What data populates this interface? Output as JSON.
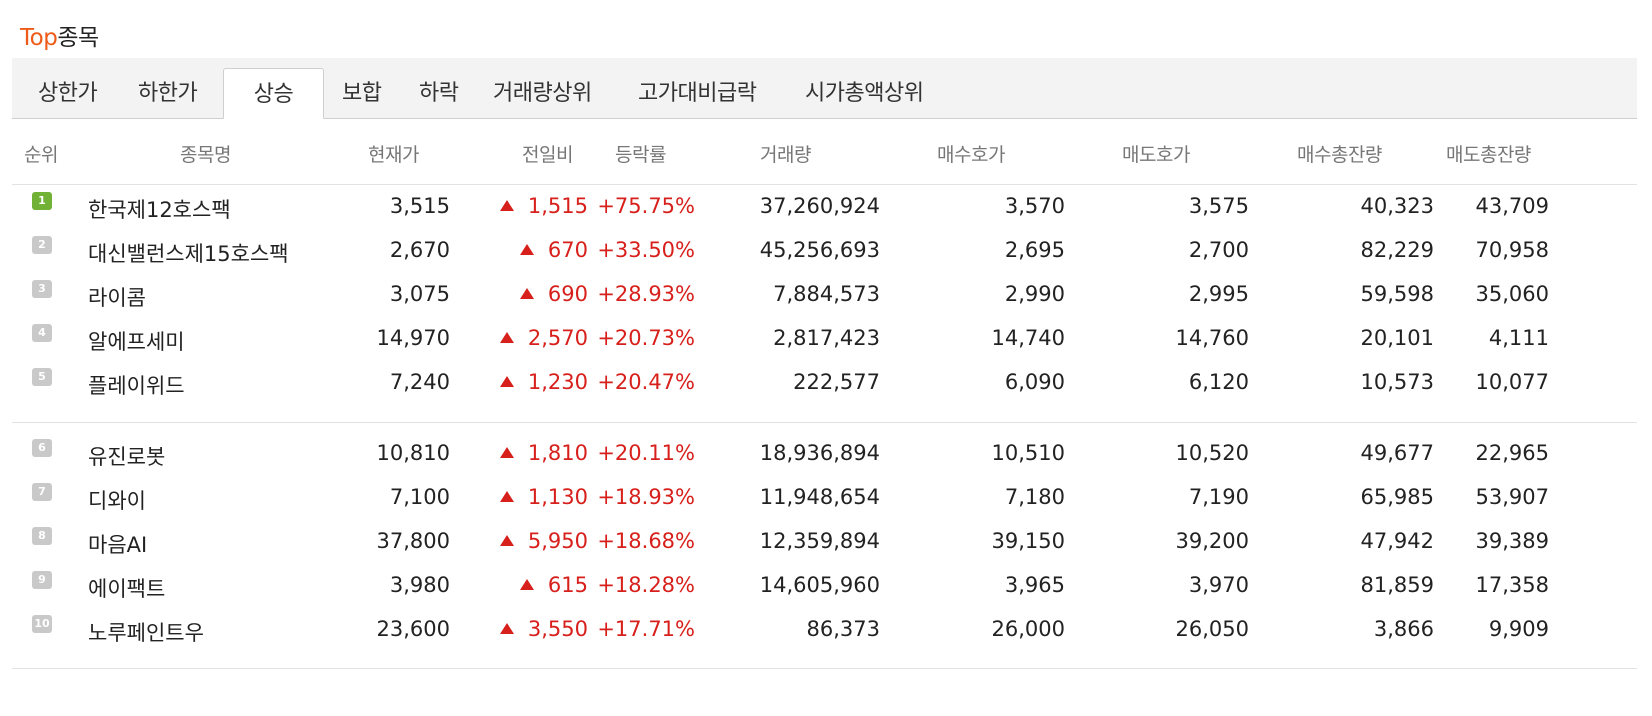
{
  "header": {
    "title_accent": "Top",
    "title_rest": "종목"
  },
  "tabs": [
    {
      "label": "상한가"
    },
    {
      "label": "하한가"
    },
    {
      "label": "상승",
      "active": true
    },
    {
      "label": "보합"
    },
    {
      "label": "하락"
    },
    {
      "label": "거래량상위"
    },
    {
      "label": "고가대비급락"
    },
    {
      "label": "시가총액상위"
    }
  ],
  "columns": [
    "순위",
    "종목명",
    "현재가",
    "전일비",
    "등락률",
    "거래량",
    "매수호가",
    "매도호가",
    "매수총잔량",
    "매도총잔량"
  ],
  "rows": [
    {
      "rank": "1",
      "name": "한국제12호스팩",
      "price": "3,515",
      "change": "1,515",
      "rate": "+75.75%",
      "volume": "37,260,924",
      "bid": "3,570",
      "ask": "3,575",
      "bid_total": "40,323",
      "ask_total": "43,709"
    },
    {
      "rank": "2",
      "name": "대신밸런스제15호스팩",
      "price": "2,670",
      "change": "670",
      "rate": "+33.50%",
      "volume": "45,256,693",
      "bid": "2,695",
      "ask": "2,700",
      "bid_total": "82,229",
      "ask_total": "70,958"
    },
    {
      "rank": "3",
      "name": "라이콤",
      "price": "3,075",
      "change": "690",
      "rate": "+28.93%",
      "volume": "7,884,573",
      "bid": "2,990",
      "ask": "2,995",
      "bid_total": "59,598",
      "ask_total": "35,060"
    },
    {
      "rank": "4",
      "name": "알에프세미",
      "price": "14,970",
      "change": "2,570",
      "rate": "+20.73%",
      "volume": "2,817,423",
      "bid": "14,740",
      "ask": "14,760",
      "bid_total": "20,101",
      "ask_total": "4,111"
    },
    {
      "rank": "5",
      "name": "플레이위드",
      "price": "7,240",
      "change": "1,230",
      "rate": "+20.47%",
      "volume": "222,577",
      "bid": "6,090",
      "ask": "6,120",
      "bid_total": "10,573",
      "ask_total": "10,077"
    },
    {
      "rank": "6",
      "name": "유진로봇",
      "price": "10,810",
      "change": "1,810",
      "rate": "+20.11%",
      "volume": "18,936,894",
      "bid": "10,510",
      "ask": "10,520",
      "bid_total": "49,677",
      "ask_total": "22,965"
    },
    {
      "rank": "7",
      "name": "디와이",
      "price": "7,100",
      "change": "1,130",
      "rate": "+18.93%",
      "volume": "11,948,654",
      "bid": "7,180",
      "ask": "7,190",
      "bid_total": "65,985",
      "ask_total": "53,907"
    },
    {
      "rank": "8",
      "name": "마음AI",
      "price": "37,800",
      "change": "5,950",
      "rate": "+18.68%",
      "volume": "12,359,894",
      "bid": "39,150",
      "ask": "39,200",
      "bid_total": "47,942",
      "ask_total": "39,389"
    },
    {
      "rank": "9",
      "name": "에이팩트",
      "price": "3,980",
      "change": "615",
      "rate": "+18.28%",
      "volume": "14,605,960",
      "bid": "3,965",
      "ask": "3,970",
      "bid_total": "81,859",
      "ask_total": "17,358"
    },
    {
      "rank": "10",
      "name": "노루페인트우",
      "price": "23,600",
      "change": "3,550",
      "rate": "+17.71%",
      "volume": "86,373",
      "bid": "26,000",
      "ask": "26,050",
      "bid_total": "3,866",
      "ask_total": "9,909"
    }
  ],
  "colors": {
    "accent": "#ee5b18",
    "up": "#d7201b",
    "rank_first": "#71b236",
    "rank_other": "#c9c9c9"
  },
  "icons": {
    "up": "up-triangle-icon",
    "rank": "rank-badge-icon"
  }
}
